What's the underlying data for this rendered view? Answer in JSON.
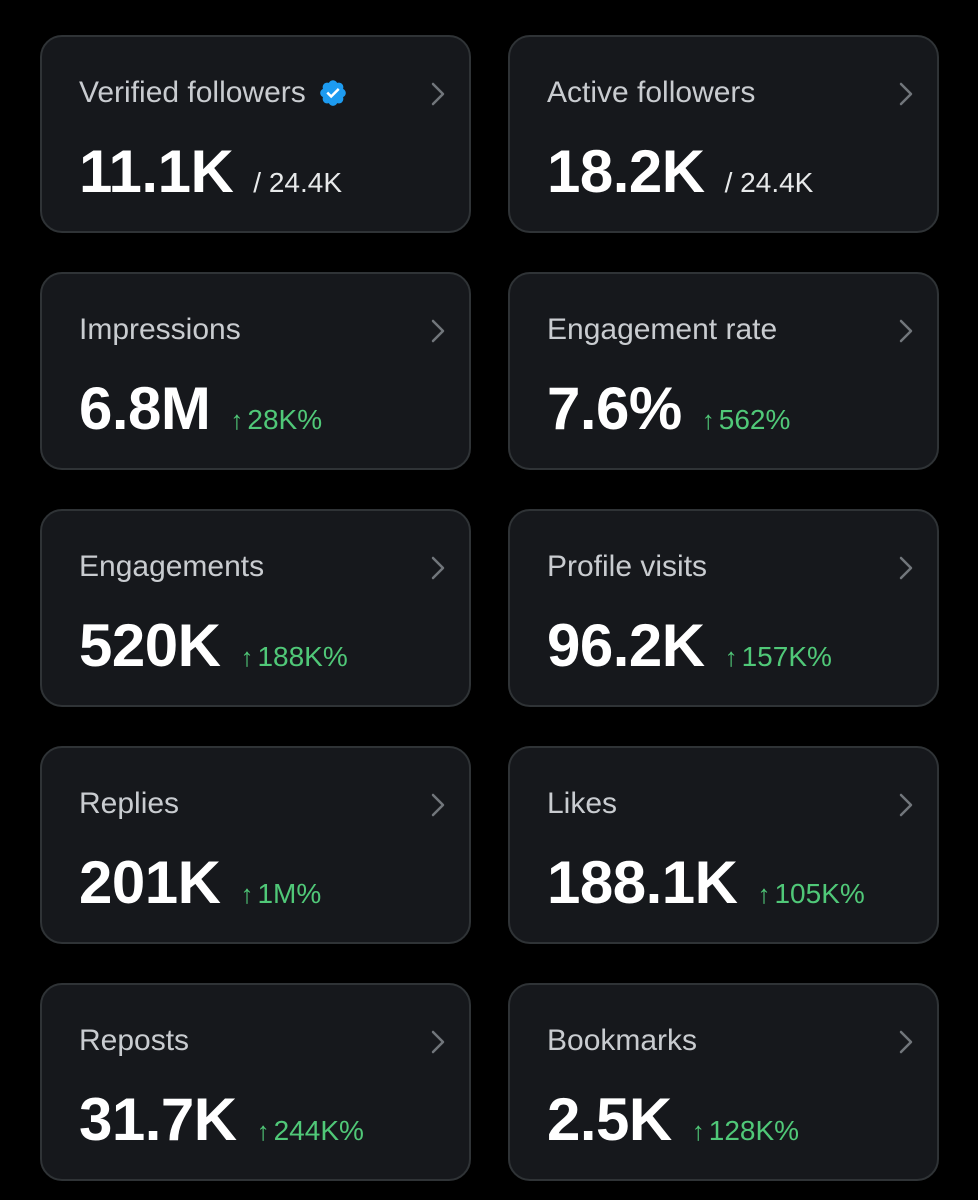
{
  "colors": {
    "background": "#000000",
    "card_background": "#16181c",
    "card_border": "#2f3336",
    "label_text": "#c9ccd0",
    "value_text": "#ffffff",
    "positive_change": "#50c878",
    "verified_badge": "#1d9bf0"
  },
  "cards": [
    {
      "label": "Verified followers",
      "value": "11.1K",
      "total": "/ 24.4K",
      "icon": "verified-badge-icon"
    },
    {
      "label": "Active followers",
      "value": "18.2K",
      "total": "/ 24.4K"
    },
    {
      "label": "Impressions",
      "value": "6.8M",
      "change": "28K%"
    },
    {
      "label": "Engagement rate",
      "value": "7.6%",
      "change": "562%"
    },
    {
      "label": "Engagements",
      "value": "520K",
      "change": "188K%"
    },
    {
      "label": "Profile visits",
      "value": "96.2K",
      "change": "157K%"
    },
    {
      "label": "Replies",
      "value": "201K",
      "change": "1M%"
    },
    {
      "label": "Likes",
      "value": "188.1K",
      "change": "105K%"
    },
    {
      "label": "Reposts",
      "value": "31.7K",
      "change": "244K%"
    },
    {
      "label": "Bookmarks",
      "value": "2.5K",
      "change": "128K%"
    }
  ],
  "arrow_glyph": "↑"
}
